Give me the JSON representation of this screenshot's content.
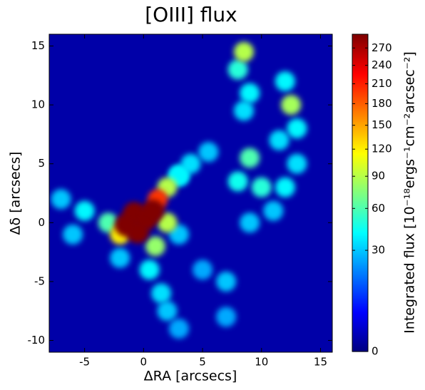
{
  "chart_data": {
    "type": "heatmap",
    "title": "[OIII] flux",
    "x_label": "ΔRA [arcsecs]",
    "y_label": "Δδ [arcsecs]",
    "colorbar_label": "Integrated flux [10⁻¹⁸ergs⁻¹cm⁻²arcsec⁻²]",
    "xlim": [
      -8,
      16
    ],
    "ylim": [
      -11,
      16
    ],
    "xticks": [
      -5,
      0,
      5,
      10,
      15
    ],
    "yticks": [
      -10,
      -5,
      0,
      5,
      10,
      15
    ],
    "zlim": [
      0,
      295
    ],
    "zticks": [
      0,
      30,
      60,
      90,
      120,
      150,
      180,
      210,
      240,
      270
    ],
    "colorbar_scale": "sqrt",
    "colormap": "jet",
    "x": [
      3,
      7,
      7,
      5,
      3,
      -7,
      -6,
      11,
      9,
      2,
      -2,
      3,
      5.5,
      8,
      13,
      1.5,
      12,
      4,
      12,
      11.5,
      13,
      8.5,
      0.5,
      -5,
      9,
      8,
      10,
      3,
      2,
      9,
      -3,
      1,
      12.5,
      8.5,
      2,
      -2,
      1.2,
      -1.5,
      -0.8,
      0.2,
      0.8,
      -0.5
    ],
    "y": [
      -9,
      -5,
      -8,
      -4,
      -1,
      2,
      -1,
      1,
      0,
      -7.5,
      -3,
      4,
      6,
      3.5,
      5,
      -6,
      12,
      5,
      3,
      7,
      8,
      9.5,
      -4,
      1,
      11,
      13,
      3,
      4,
      3,
      5.5,
      0,
      -2,
      10,
      14.5,
      0,
      -1,
      2,
      -0.2,
      0.8,
      0.3,
      1,
      -0.8
    ],
    "values": [
      25,
      30,
      25,
      25,
      30,
      30,
      30,
      30,
      30,
      30,
      30,
      40,
      30,
      45,
      35,
      35,
      40,
      35,
      40,
      35,
      40,
      35,
      40,
      40,
      40,
      50,
      50,
      40,
      90,
      60,
      60,
      80,
      85,
      90,
      90,
      120,
      200,
      295,
      295,
      295,
      295,
      295
    ]
  }
}
